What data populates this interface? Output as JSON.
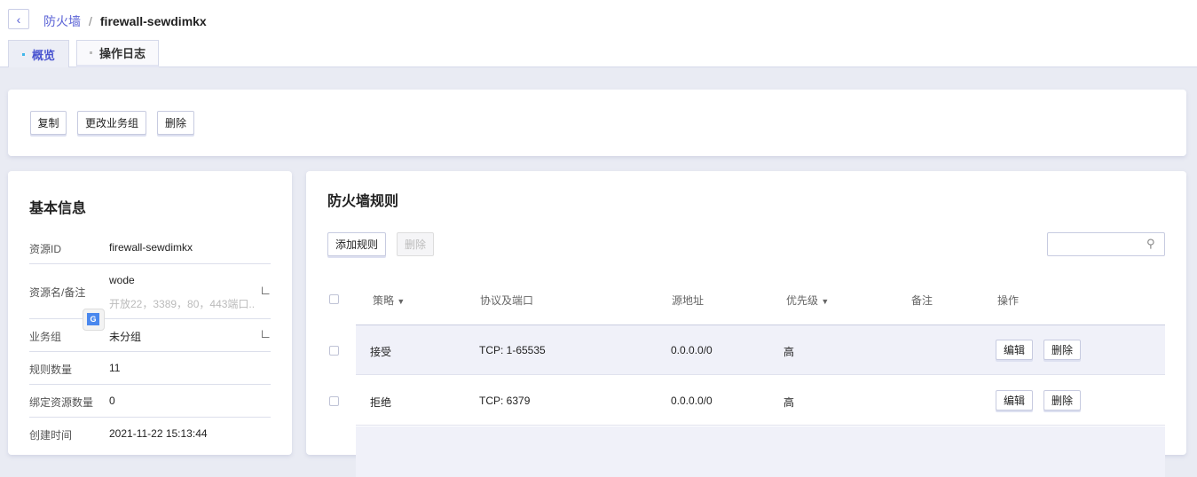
{
  "breadcrumb": {
    "parent": "防火墙",
    "separator": "/",
    "current": "firewall-sewdimkx"
  },
  "tabs": [
    {
      "label": "概览",
      "active": true
    },
    {
      "label": "操作日志",
      "active": false
    }
  ],
  "actions": {
    "copy": "复制",
    "change_group": "更改业务组",
    "delete": "删除"
  },
  "basic_info": {
    "title": "基本信息",
    "rows": [
      {
        "label": "资源ID",
        "value": "firewall-sewdimkx"
      },
      {
        "label": "资源名/备注",
        "value": "wode",
        "note": "开放22，3389，80，443端口..."
      },
      {
        "label": "业务组",
        "value": "未分组"
      },
      {
        "label": "规则数量",
        "value": "11"
      },
      {
        "label": "绑定资源数量",
        "value": "0"
      },
      {
        "label": "创建时间",
        "value": "2021-11-22 15:13:44"
      }
    ]
  },
  "rules": {
    "title": "防火墙规则",
    "add_label": "添加规则",
    "delete_label": "删除",
    "search_placeholder": "",
    "columns": [
      "策略",
      "协议及端口",
      "源地址",
      "优先级",
      "备注",
      "操作"
    ],
    "rows": [
      {
        "policy": "接受",
        "protocol": "TCP: 1-65535",
        "source": "0.0.0.0/0",
        "priority": "高",
        "note": "",
        "edit": "编辑",
        "delete": "删除"
      },
      {
        "policy": "拒绝",
        "protocol": "TCP: 6379",
        "source": "0.0.0.0/0",
        "priority": "高",
        "note": "",
        "edit": "编辑",
        "delete": "删除"
      }
    ]
  },
  "colors": {
    "accent": "#5b63d6",
    "background": "#e9ebf3",
    "row_highlight": "#f0f1f9"
  }
}
